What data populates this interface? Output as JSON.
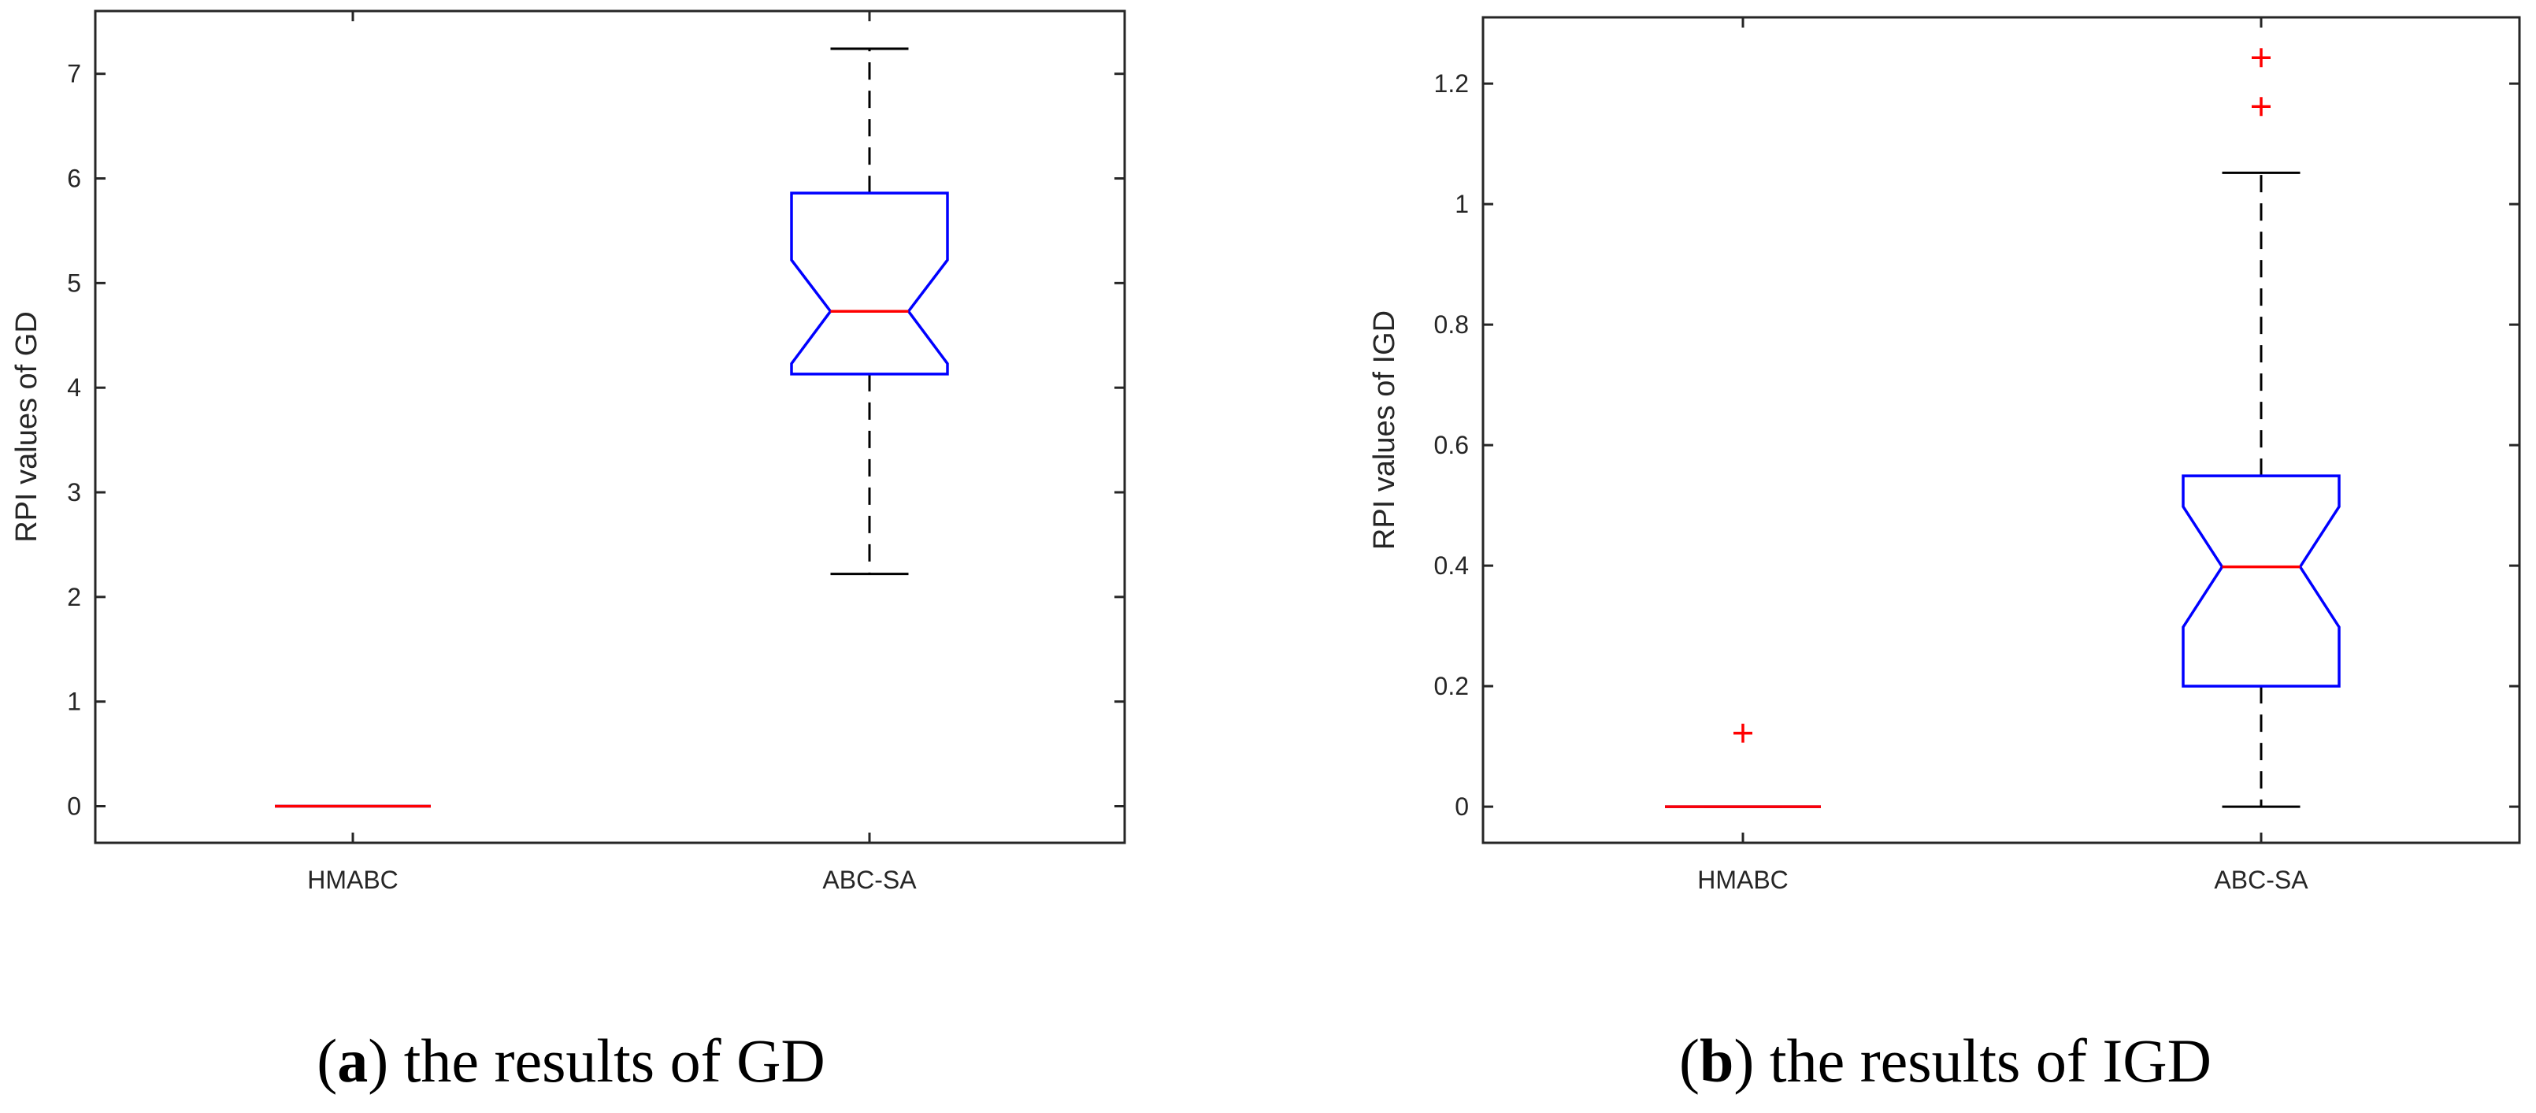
{
  "chart_data": [
    {
      "type": "boxplot",
      "panel": "a",
      "caption_letter": "a",
      "caption_text": "the results of GD",
      "xlabel": "",
      "ylabel": "RPI values of GD",
      "ylim": [
        -0.35,
        7.6
      ],
      "yticks": [
        0,
        1,
        2,
        3,
        4,
        5,
        6,
        7
      ],
      "notched": true,
      "grid": false,
      "colors": {
        "box": "#0000ff",
        "median": "#ff0000",
        "whisker": "#000000",
        "outlier": "#ff0000"
      },
      "boxes": [
        {
          "label": "HMABC",
          "q1": 0,
          "median": 0,
          "q3": 0,
          "notch_low": 0,
          "notch_high": 0,
          "whisker_low": 0,
          "whisker_high": 0,
          "outliers": []
        },
        {
          "label": "ABC-SA",
          "q1": 4.13,
          "median": 4.73,
          "q3": 5.86,
          "notch_low": 4.23,
          "notch_high": 5.22,
          "whisker_low": 2.22,
          "whisker_high": 7.24,
          "outliers": []
        }
      ]
    },
    {
      "type": "boxplot",
      "panel": "b",
      "caption_letter": "b",
      "caption_text": "the results of IGD",
      "xlabel": "",
      "ylabel": "RPI values of IGD",
      "ylim": [
        -0.06,
        1.31
      ],
      "yticks": [
        0,
        0.2,
        0.4,
        0.6,
        0.8,
        1,
        1.2
      ],
      "notched": true,
      "grid": false,
      "colors": {
        "box": "#0000ff",
        "median": "#ff0000",
        "whisker": "#000000",
        "outlier": "#ff0000"
      },
      "boxes": [
        {
          "label": "HMABC",
          "q1": 0,
          "median": 0,
          "q3": 0,
          "notch_low": 0,
          "notch_high": 0,
          "whisker_low": 0,
          "whisker_high": 0,
          "outliers": [
            0.122
          ]
        },
        {
          "label": "ABC-SA",
          "q1": 0.2,
          "median": 0.398,
          "q3": 0.549,
          "notch_low": 0.298,
          "notch_high": 0.498,
          "whisker_low": 0,
          "whisker_high": 1.052,
          "outliers": [
            1.162,
            1.243
          ]
        }
      ]
    }
  ]
}
